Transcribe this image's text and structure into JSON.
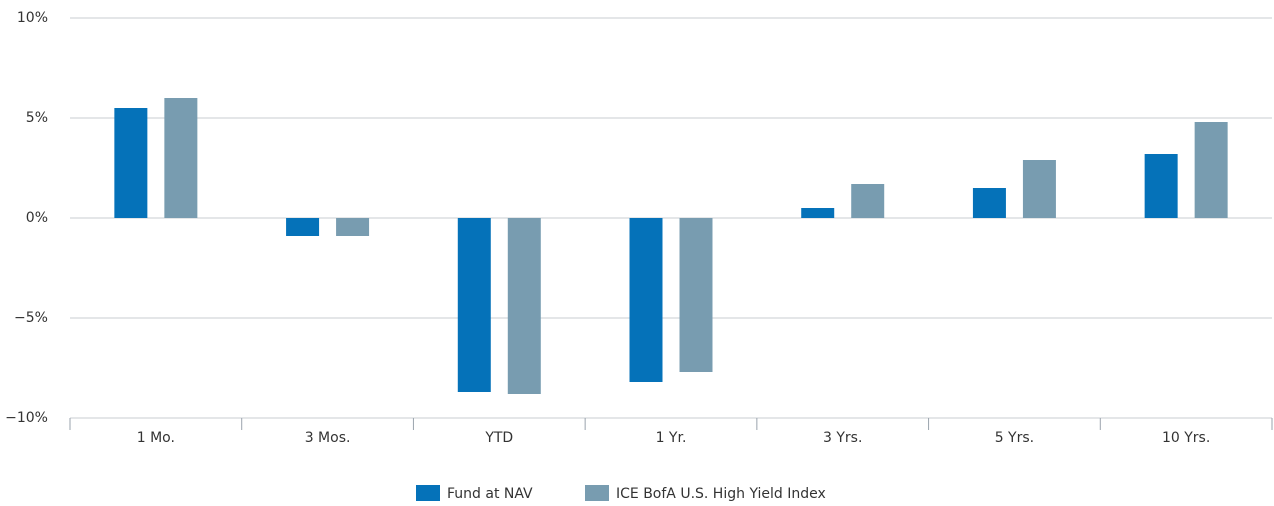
{
  "chart_data": {
    "type": "bar",
    "categories": [
      "1 Mo.",
      "3 Mos.",
      "YTD",
      "1 Yr.",
      "3 Yrs.",
      "5 Yrs.",
      "10 Yrs."
    ],
    "series": [
      {
        "name": "Fund at NAV",
        "color": "#0572b9",
        "values": [
          5.5,
          -0.9,
          -8.7,
          -8.2,
          0.5,
          1.5,
          3.2
        ]
      },
      {
        "name": "ICE BofA U.S. High Yield Index",
        "color": "#789cb0",
        "values": [
          6.0,
          -0.9,
          -8.8,
          -7.7,
          1.7,
          2.9,
          4.8
        ]
      }
    ],
    "ylim": [
      -10,
      10
    ],
    "yticks": [
      {
        "value": -10,
        "label": "−10%"
      },
      {
        "value": -5,
        "label": "−5%"
      },
      {
        "value": 0,
        "label": "0%"
      },
      {
        "value": 5,
        "label": "5%"
      },
      {
        "value": 10,
        "label": "10%"
      }
    ],
    "grid": true
  }
}
